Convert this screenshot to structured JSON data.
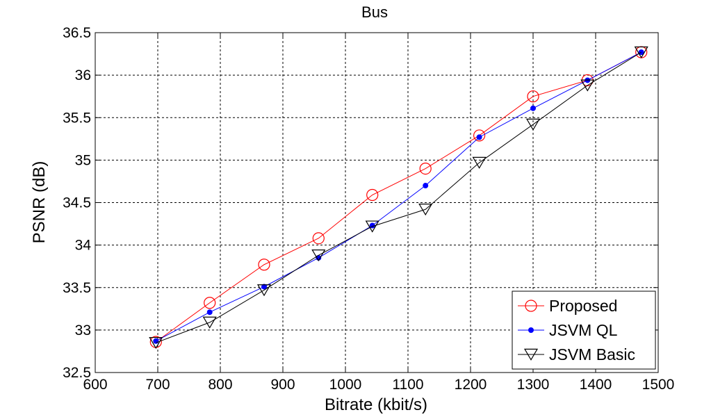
{
  "chart_data": {
    "type": "line",
    "title": "Bus",
    "xlabel": "Bitrate (kbit/s)",
    "ylabel": "PSNR (dB)",
    "xlim": [
      600,
      1500
    ],
    "ylim": [
      32.5,
      36.5
    ],
    "xticks": [
      600,
      700,
      800,
      900,
      1000,
      1100,
      1200,
      1300,
      1400,
      1500
    ],
    "yticks": [
      32.5,
      33,
      33.5,
      34,
      34.5,
      35,
      35.5,
      36,
      36.5
    ],
    "xtick_labels": [
      "600",
      "700",
      "800",
      "900",
      "1000",
      "1100",
      "1200",
      "1300",
      "1400",
      "1500"
    ],
    "ytick_labels": [
      "32.5",
      "33",
      "33.5",
      "34",
      "34.5",
      "35",
      "35.5",
      "36",
      "36.5"
    ],
    "grid": true,
    "legend_position": "bottom-right",
    "series": [
      {
        "name": "Proposed",
        "color": "#ff0000",
        "marker": "circle",
        "x": [
          697,
          783,
          870,
          957,
          1043,
          1128,
          1214,
          1300,
          1387,
          1473
        ],
        "y": [
          32.86,
          33.32,
          33.77,
          34.08,
          34.59,
          34.9,
          35.29,
          35.75,
          35.94,
          36.27
        ]
      },
      {
        "name": "JSVM QL",
        "color": "#0000ff",
        "marker": "dot",
        "x": [
          697,
          783,
          870,
          957,
          1043,
          1128,
          1214,
          1300,
          1387,
          1473
        ],
        "y": [
          32.87,
          33.21,
          33.51,
          33.85,
          34.23,
          34.7,
          35.27,
          35.61,
          35.94,
          36.27
        ]
      },
      {
        "name": "JSVM Basic",
        "color": "#000000",
        "marker": "triangle-down",
        "x": [
          697,
          783,
          870,
          957,
          1043,
          1128,
          1214,
          1300,
          1387,
          1473
        ],
        "y": [
          32.85,
          33.09,
          33.47,
          33.88,
          34.22,
          34.42,
          34.97,
          35.42,
          35.88,
          36.27
        ]
      }
    ]
  }
}
